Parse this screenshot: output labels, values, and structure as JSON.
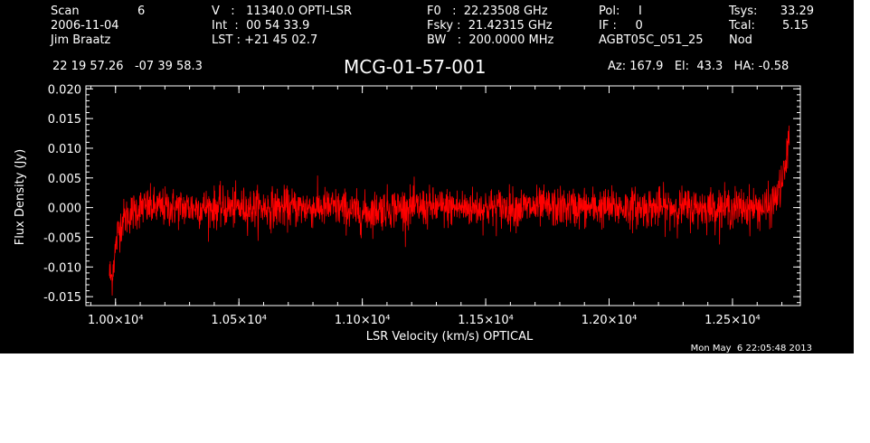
{
  "header": {
    "col1": [
      "Scan",
      "2006-11-04",
      "Jim Braatz"
    ],
    "scan_number": "6",
    "col2": [
      "V   :   11340.0 OPTI-LSR",
      "Int  :  00 54 33.9",
      "LST : +21 45 02.7"
    ],
    "col3": [
      "F0   :  22.23508 GHz",
      "Fsky :  21.42315 GHz",
      "BW   :  200.0000 MHz"
    ],
    "col4": [
      "Pol:     I",
      "IF :     0",
      "AGBT05C_051_25"
    ],
    "col5_labels": [
      "Tsys:",
      "Tcal:",
      "Nod"
    ],
    "col5_values": [
      "33.29",
      "5.15",
      ""
    ],
    "coords": "22 19 57.26   -07 39 58.3",
    "object": "MCG-01-57-001",
    "azelha": "Az: 167.9   El:  43.3   HA: -0.58",
    "timestamp": "Mon May  6 22:05:48 2013"
  },
  "chart_data": {
    "type": "line",
    "title": "MCG-01-57-001",
    "xlabel": "LSR Velocity (km/s) OPTICAL",
    "ylabel": "Flux Density (Jy)",
    "xlim": [
      9880,
      12775
    ],
    "ylim": [
      -0.0165,
      0.0205
    ],
    "yticks": [
      -0.015,
      -0.01,
      -0.005,
      0.0,
      0.005,
      0.01,
      0.015,
      0.02
    ],
    "ytick_labels": [
      "-0.015",
      "-0.010",
      "-0.005",
      "0.000",
      "0.005",
      "0.010",
      "0.015",
      "0.020"
    ],
    "xticks": [
      10000,
      10500,
      11000,
      11500,
      12000,
      12500
    ],
    "xtick_labels": [
      "1.00×10⁴",
      "1.05×10⁴",
      "1.10×10⁴",
      "1.15×10⁴",
      "1.20×10⁴",
      "1.25×10⁴"
    ],
    "series": [
      {
        "color": "#ff0000",
        "x": [
          9975,
          9985,
          9990,
          10000,
          10010,
          10030,
          10060,
          10100,
          10200,
          10300,
          10400,
          10500,
          10600,
          10700,
          10800,
          10900,
          11000,
          11100,
          11200,
          11300,
          11400,
          11500,
          11600,
          11700,
          11800,
          11900,
          12000,
          12100,
          12200,
          12300,
          12400,
          12500,
          12600,
          12650,
          12680,
          12700,
          12720,
          12730
        ],
        "y": [
          -0.011,
          -0.012,
          -0.01,
          -0.007,
          -0.004,
          -0.002,
          -0.001,
          0.0,
          0.0,
          0.0,
          0.0,
          0.0,
          0.0,
          0.0,
          0.0,
          0.0,
          -0.001,
          0.0,
          0.0,
          0.0,
          0.0,
          0.0,
          0.0,
          0.0,
          0.0,
          0.0,
          0.0,
          0.0,
          0.0,
          0.0,
          0.0,
          0.0,
          0.0,
          0.0,
          0.002,
          0.004,
          0.008,
          0.013
        ],
        "noise_sigma": 0.0022
      }
    ],
    "grid": false
  }
}
